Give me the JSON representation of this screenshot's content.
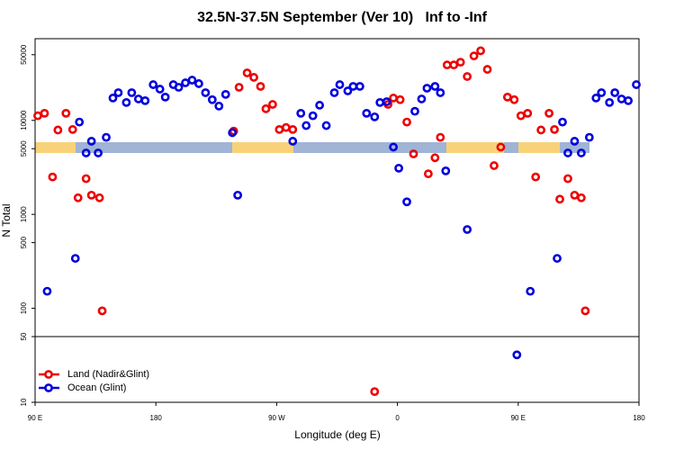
{
  "chart_data": {
    "type": "scatter",
    "title": "32.5N-37.5N September (Ver 10)   Inf to -Inf",
    "x_label": "Longitude (deg E)",
    "y_label": "N Total",
    "xlim": [
      90,
      540
    ],
    "xticks": [
      {
        "value": 90,
        "label": "90 E"
      },
      {
        "value": 180,
        "label": "180"
      },
      {
        "value": 270,
        "label": "90 W"
      },
      {
        "value": 360,
        "label": "0"
      },
      {
        "value": 450,
        "label": "90 E"
      },
      {
        "value": 540,
        "label": "180"
      }
    ],
    "ylim": [
      10,
      74000
    ],
    "y_log": true,
    "yticks": [
      10,
      50,
      100,
      500,
      1000,
      5000,
      10000,
      50000
    ],
    "divider": 50,
    "legend": "lower left",
    "series": [
      {
        "name": "Land (Nadir&Glint)",
        "color": "#ee0000",
        "x": [
          92,
          97,
          103,
          107,
          113,
          118,
          122,
          128,
          132,
          138,
          140,
          238,
          242,
          248,
          253,
          258,
          262,
          267,
          272,
          277,
          282,
          343,
          353,
          357,
          362,
          367,
          372,
          383,
          388,
          392,
          397,
          402,
          407,
          412,
          417,
          422,
          427,
          432,
          437,
          442,
          447,
          452,
          457,
          463,
          467,
          473,
          477,
          481,
          487,
          492,
          497,
          500
        ],
        "values": [
          11200,
          11900,
          2500,
          7900,
          11900,
          8000,
          1500,
          2400,
          1600,
          1500,
          94,
          7700,
          22500,
          32000,
          28700,
          23000,
          13300,
          14800,
          8000,
          8400,
          8000,
          13,
          14800,
          17300,
          16600,
          9600,
          4400,
          2700,
          4000,
          6600,
          38900,
          38900,
          41600,
          29300,
          48500,
          55000,
          34900,
          3300,
          5200,
          17700,
          16600,
          11200,
          11900,
          2500,
          7900,
          11900,
          8000,
          1450,
          2400,
          1600,
          1500,
          94
        ]
      },
      {
        "name": "Ocean (Glint)",
        "color": "#0000dd",
        "x": [
          99,
          120,
          123,
          128,
          132,
          137,
          143,
          148,
          152,
          158,
          162,
          167,
          172,
          178,
          183,
          187,
          193,
          197,
          202,
          207,
          212,
          217,
          222,
          227,
          232,
          237,
          241,
          282,
          288,
          292,
          297,
          302,
          307,
          313,
          317,
          323,
          327,
          332,
          337,
          343,
          347,
          352,
          357,
          361,
          367,
          373,
          378,
          382,
          388,
          392,
          396,
          412,
          449,
          459,
          479,
          483,
          487,
          492,
          497,
          503,
          508,
          512,
          518,
          522,
          527,
          532,
          538
        ],
        "values": [
          152,
          340,
          9600,
          4500,
          6000,
          4500,
          6600,
          17300,
          19700,
          15500,
          19700,
          16900,
          16200,
          24000,
          21500,
          17700,
          24000,
          22500,
          25100,
          26800,
          24600,
          19700,
          16600,
          14200,
          18900,
          7400,
          1600,
          6000,
          11900,
          8800,
          11200,
          14500,
          8800,
          19700,
          24000,
          20600,
          23000,
          23000,
          11900,
          10900,
          15500,
          15800,
          5200,
          3100,
          1360,
          12500,
          16900,
          22000,
          23000,
          19700,
          2900,
          690,
          32,
          152,
          340,
          9600,
          4500,
          6000,
          4500,
          6600,
          17300,
          19700,
          15500,
          19700,
          16900,
          16200,
          24000
        ]
      }
    ]
  }
}
